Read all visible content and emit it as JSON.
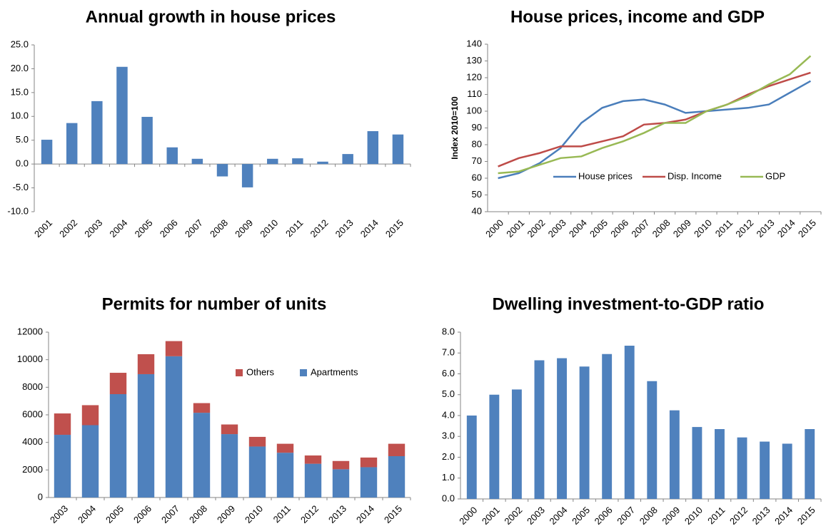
{
  "chart_data": [
    {
      "type": "bar",
      "title": "Annual growth in house prices",
      "categories": [
        "2001",
        "2002",
        "2003",
        "2004",
        "2005",
        "2006",
        "2007",
        "2008",
        "2009",
        "2010",
        "2011",
        "2012",
        "2013",
        "2014",
        "2015"
      ],
      "values": [
        5.1,
        8.6,
        13.2,
        20.4,
        9.9,
        3.5,
        1.1,
        -2.6,
        -4.9,
        1.1,
        1.2,
        0.5,
        2.1,
        6.9,
        6.2
      ],
      "color": "#4f81bd",
      "ylim": [
        -10,
        25
      ],
      "yticks": [
        {
          "value": -10,
          "label": "-10.0"
        },
        {
          "value": -5,
          "label": "-5.0"
        },
        {
          "value": 0,
          "label": "0.0"
        },
        {
          "value": 5,
          "label": "5.0"
        },
        {
          "value": 10,
          "label": "10.0"
        },
        {
          "value": 15,
          "label": "15.0"
        },
        {
          "value": 20,
          "label": "20.0"
        },
        {
          "value": 25,
          "label": "25.0"
        }
      ]
    },
    {
      "type": "line",
      "title": "House prices, income and GDP",
      "y_label": "Index 2010=100",
      "categories": [
        "2000",
        "2001",
        "2002",
        "2003",
        "2004",
        "2005",
        "2006",
        "2007",
        "2008",
        "2009",
        "2010",
        "2011",
        "2012",
        "2013",
        "2014",
        "2015"
      ],
      "series": [
        {
          "name": "House prices",
          "color": "#4a7ebb",
          "values": [
            60,
            63,
            69,
            78,
            93,
            102,
            106,
            107,
            104,
            99,
            100,
            101,
            102,
            104,
            111,
            118
          ]
        },
        {
          "name": "Disp. Income",
          "color": "#be4b48",
          "values": [
            67,
            72,
            75,
            79,
            79,
            82,
            85,
            92,
            93,
            95,
            100,
            104,
            110,
            115,
            119,
            123
          ]
        },
        {
          "name": "GDP",
          "color": "#98b954",
          "values": [
            63,
            64,
            68,
            72,
            73,
            78,
            82,
            87,
            93,
            93,
            100,
            104,
            109,
            116,
            122,
            133
          ]
        }
      ],
      "ylim": [
        40,
        140
      ],
      "yticks": [
        40,
        50,
        60,
        70,
        80,
        90,
        100,
        110,
        120,
        130,
        140
      ],
      "legend": "bottom"
    },
    {
      "type": "stacked_bar",
      "title": "Permits for number of units",
      "categories": [
        "2003",
        "2004",
        "2005",
        "2006",
        "2007",
        "2008",
        "2009",
        "2010",
        "2011",
        "2012",
        "2013",
        "2014",
        "2015"
      ],
      "series": [
        {
          "name": "Apartments",
          "color": "#4f81bd",
          "values": [
            4550,
            5250,
            7500,
            8950,
            10250,
            6150,
            4600,
            3700,
            3250,
            2450,
            2050,
            2200,
            3000
          ]
        },
        {
          "name": "Others",
          "color": "#c0504d",
          "values": [
            1550,
            1450,
            1550,
            1450,
            1100,
            700,
            700,
            700,
            650,
            600,
            600,
            700,
            900
          ]
        }
      ],
      "ylim": [
        0,
        12000
      ],
      "yticks": [
        0,
        2000,
        4000,
        6000,
        8000,
        10000,
        12000
      ],
      "legend": "top-right"
    },
    {
      "type": "bar",
      "title": "Dwelling investment-to-GDP ratio",
      "categories": [
        "2000",
        "2001",
        "2002",
        "2003",
        "2004",
        "2005",
        "2006",
        "2007",
        "2008",
        "2009",
        "2010",
        "2011",
        "2012",
        "2013",
        "2014",
        "2015"
      ],
      "values": [
        4.0,
        5.0,
        5.25,
        6.65,
        6.75,
        6.35,
        6.95,
        7.35,
        5.65,
        4.25,
        3.45,
        3.35,
        2.95,
        2.75,
        2.65,
        3.35
      ],
      "color": "#4f81bd",
      "ylim": [
        0,
        8
      ],
      "yticks": [
        {
          "value": 0,
          "label": "0.0"
        },
        {
          "value": 1,
          "label": "1.0"
        },
        {
          "value": 2,
          "label": "2.0"
        },
        {
          "value": 3,
          "label": "3.0"
        },
        {
          "value": 4,
          "label": "4.0"
        },
        {
          "value": 5,
          "label": "5.0"
        },
        {
          "value": 6,
          "label": "6.0"
        },
        {
          "value": 7,
          "label": "7.0"
        },
        {
          "value": 8,
          "label": "8.0"
        }
      ]
    }
  ]
}
